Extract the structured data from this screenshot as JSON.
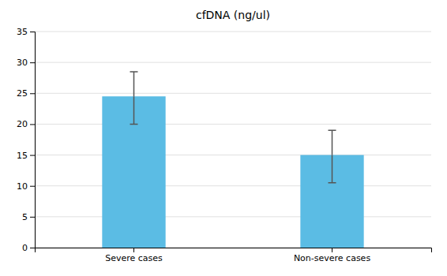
{
  "chart_data": {
    "type": "bar",
    "title": "cfDNA (ng/ul)",
    "categories": [
      "Severe cases",
      "Non-severe cases"
    ],
    "values": [
      24.5,
      15.0
    ],
    "errors_upper": [
      4.0,
      4.0
    ],
    "errors_lower": [
      4.5,
      4.5
    ],
    "color": "#5bbce4",
    "ylim": [
      0,
      35
    ],
    "yticks": [
      0,
      5,
      10,
      15,
      20,
      25,
      30,
      35
    ],
    "grid": true
  }
}
